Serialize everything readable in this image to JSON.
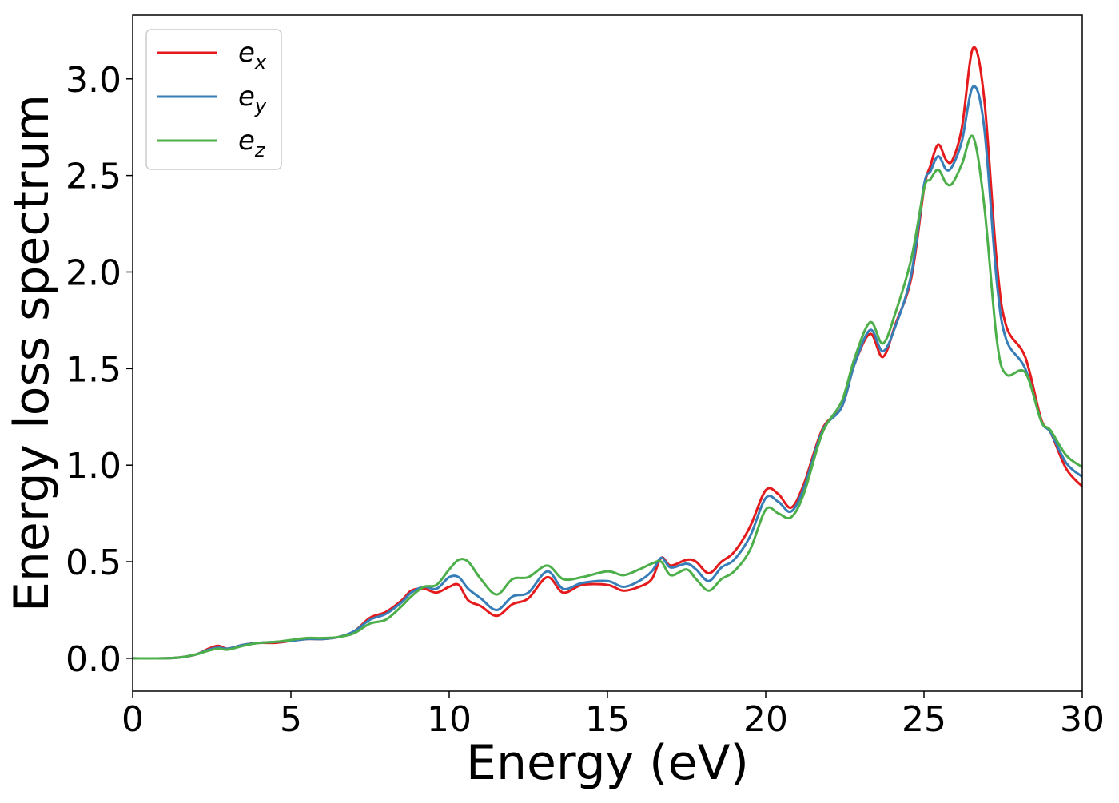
{
  "chart_data": {
    "type": "line",
    "title": "",
    "xlabel": "Energy (eV)",
    "ylabel": "Energy loss spectrum",
    "xlim": [
      0,
      30
    ],
    "ylim": [
      -0.17,
      3.33
    ],
    "xticks": [
      0,
      5,
      10,
      15,
      20,
      25,
      30
    ],
    "xtick_labels": [
      "0",
      "5",
      "10",
      "15",
      "20",
      "25",
      "30"
    ],
    "yticks": [
      0.0,
      0.5,
      1.0,
      1.5,
      2.0,
      2.5,
      3.0
    ],
    "ytick_labels": [
      "0.0",
      "0.5",
      "1.0",
      "1.5",
      "2.0",
      "2.5",
      "3.0"
    ],
    "grid": false,
    "legend_position": "top-left",
    "series": [
      {
        "name": "e_x",
        "label_base": "e",
        "label_sub": "x",
        "color": "#e41a1c",
        "x": [
          0,
          1,
          1.5,
          2,
          2.4,
          2.7,
          3,
          3.5,
          4,
          4.5,
          5,
          5.5,
          6,
          6.5,
          7,
          7.5,
          8,
          8.5,
          8.8,
          9.2,
          9.6,
          10,
          10.3,
          10.6,
          11,
          11.5,
          12,
          12.5,
          13.1,
          13.6,
          14.2,
          15,
          15.5,
          16,
          16.4,
          16.7,
          17,
          17.5,
          17.8,
          18.2,
          18.6,
          19,
          19.5,
          20,
          20.4,
          20.8,
          21.2,
          21.8,
          22.4,
          22.8,
          23.3,
          23.7,
          24.1,
          24.6,
          25,
          25.2,
          25.45,
          25.7,
          25.9,
          26.2,
          26.55,
          26.9,
          27.3,
          27.6,
          28.2,
          28.7,
          29,
          29.5,
          30
        ],
        "y": [
          0,
          0,
          0.005,
          0.02,
          0.05,
          0.065,
          0.05,
          0.07,
          0.08,
          0.08,
          0.09,
          0.1,
          0.1,
          0.11,
          0.14,
          0.21,
          0.24,
          0.3,
          0.35,
          0.36,
          0.34,
          0.37,
          0.38,
          0.3,
          0.27,
          0.22,
          0.28,
          0.31,
          0.42,
          0.34,
          0.38,
          0.38,
          0.35,
          0.37,
          0.41,
          0.52,
          0.48,
          0.51,
          0.5,
          0.44,
          0.5,
          0.55,
          0.68,
          0.87,
          0.85,
          0.78,
          0.9,
          1.19,
          1.3,
          1.52,
          1.68,
          1.56,
          1.73,
          1.97,
          2.43,
          2.55,
          2.66,
          2.58,
          2.58,
          2.75,
          3.16,
          2.9,
          2.05,
          1.72,
          1.56,
          1.24,
          1.17,
          0.98,
          0.89
        ]
      },
      {
        "name": "e_y",
        "label_base": "e",
        "label_sub": "y",
        "color": "#377eb8",
        "x": [
          0,
          1,
          1.5,
          2,
          2.4,
          2.7,
          3,
          3.5,
          4,
          4.5,
          5,
          5.5,
          6,
          6.5,
          7,
          7.5,
          8,
          8.5,
          8.8,
          9.2,
          9.6,
          10,
          10.3,
          10.6,
          11,
          11.5,
          12,
          12.5,
          13.1,
          13.6,
          14.2,
          15,
          15.5,
          16,
          16.4,
          16.7,
          17,
          17.5,
          17.8,
          18.2,
          18.6,
          19,
          19.5,
          20,
          20.4,
          20.8,
          21.2,
          21.8,
          22.4,
          22.8,
          23.3,
          23.7,
          24.1,
          24.6,
          25,
          25.2,
          25.45,
          25.7,
          25.9,
          26.2,
          26.55,
          26.9,
          27.3,
          27.6,
          28.2,
          28.7,
          29,
          29.5,
          30
        ],
        "y": [
          0,
          0,
          0.005,
          0.02,
          0.045,
          0.055,
          0.05,
          0.07,
          0.08,
          0.085,
          0.09,
          0.1,
          0.1,
          0.11,
          0.14,
          0.2,
          0.23,
          0.29,
          0.34,
          0.37,
          0.36,
          0.42,
          0.42,
          0.36,
          0.31,
          0.25,
          0.32,
          0.34,
          0.45,
          0.36,
          0.39,
          0.4,
          0.37,
          0.4,
          0.45,
          0.52,
          0.47,
          0.49,
          0.46,
          0.4,
          0.47,
          0.51,
          0.63,
          0.83,
          0.81,
          0.76,
          0.88,
          1.18,
          1.3,
          1.52,
          1.7,
          1.59,
          1.72,
          1.99,
          2.45,
          2.52,
          2.6,
          2.53,
          2.55,
          2.68,
          2.96,
          2.75,
          1.95,
          1.65,
          1.5,
          1.23,
          1.17,
          1.01,
          0.94
        ]
      },
      {
        "name": "e_z",
        "label_base": "e",
        "label_sub": "z",
        "color": "#4daf4a",
        "x": [
          0,
          1,
          1.5,
          2,
          2.4,
          2.7,
          3,
          3.5,
          4,
          4.5,
          5,
          5.5,
          6,
          6.5,
          7,
          7.5,
          8,
          8.5,
          8.8,
          9.2,
          9.6,
          10,
          10.3,
          10.6,
          11,
          11.5,
          12,
          12.5,
          13.1,
          13.6,
          14.2,
          15,
          15.5,
          16,
          16.4,
          16.7,
          17,
          17.5,
          17.8,
          18.2,
          18.6,
          19,
          19.5,
          20,
          20.4,
          20.8,
          21.2,
          21.8,
          22.4,
          22.8,
          23.3,
          23.7,
          24.1,
          24.6,
          25,
          25.2,
          25.45,
          25.7,
          25.9,
          26.2,
          26.55,
          26.9,
          27.3,
          27.6,
          28.2,
          28.7,
          29,
          29.5,
          30
        ],
        "y": [
          0,
          0,
          0.005,
          0.02,
          0.04,
          0.05,
          0.045,
          0.065,
          0.08,
          0.085,
          0.095,
          0.105,
          0.105,
          0.11,
          0.13,
          0.18,
          0.2,
          0.27,
          0.32,
          0.37,
          0.38,
          0.46,
          0.51,
          0.5,
          0.41,
          0.33,
          0.41,
          0.42,
          0.48,
          0.41,
          0.42,
          0.45,
          0.43,
          0.46,
          0.49,
          0.5,
          0.43,
          0.46,
          0.41,
          0.35,
          0.41,
          0.45,
          0.56,
          0.77,
          0.75,
          0.73,
          0.85,
          1.17,
          1.33,
          1.55,
          1.74,
          1.63,
          1.79,
          2.07,
          2.43,
          2.48,
          2.53,
          2.46,
          2.46,
          2.56,
          2.7,
          2.35,
          1.65,
          1.47,
          1.48,
          1.23,
          1.18,
          1.05,
          0.99
        ]
      }
    ]
  }
}
